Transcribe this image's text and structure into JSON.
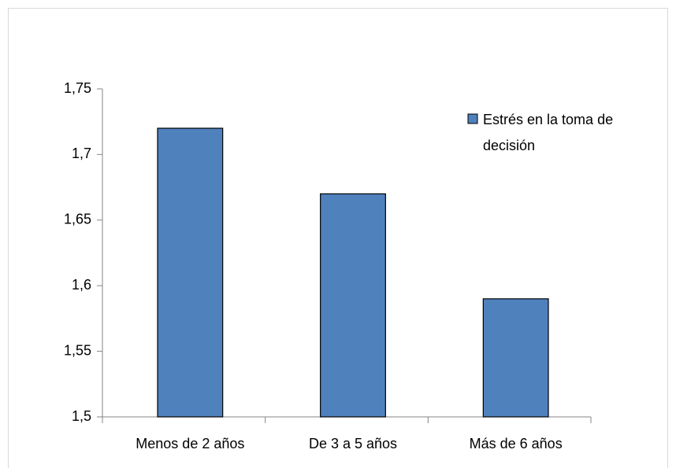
{
  "chart_data": {
    "type": "bar",
    "categories": [
      "Menos de 2 años",
      "De 3 a 5 años",
      "Más de 6 años"
    ],
    "series": [
      {
        "name": "Estrés en la toma de decisión",
        "color": "#4f81bd",
        "values": [
          1.72,
          1.67,
          1.59
        ]
      }
    ],
    "ylim": [
      1.5,
      1.75
    ],
    "yticks": [
      {
        "value": 1.5,
        "label": "1,5"
      },
      {
        "value": 1.55,
        "label": "1,55"
      },
      {
        "value": 1.6,
        "label": "1,6"
      },
      {
        "value": 1.65,
        "label": "1,65"
      },
      {
        "value": 1.7,
        "label": "1,7"
      },
      {
        "value": 1.75,
        "label": "1,75"
      }
    ],
    "grid": false,
    "legend": "upper right"
  }
}
